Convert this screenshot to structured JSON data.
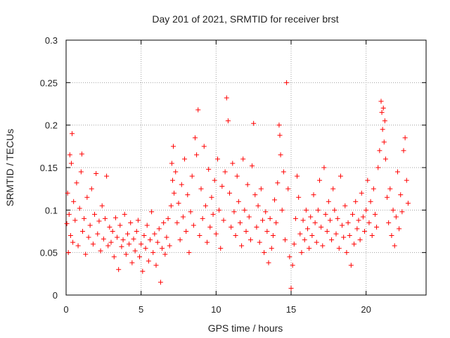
{
  "chart_data": {
    "type": "scatter",
    "title": "Day 201 of 2021, SRMTID for receiver brst",
    "xlabel": "GPS time / hours",
    "ylabel": "SRMTID / TECUs",
    "xlim": [
      0,
      24
    ],
    "ylim": [
      0,
      0.3
    ],
    "xticks": [
      0,
      5,
      10,
      15,
      20
    ],
    "xtick_labels": [
      "0",
      "5",
      "10",
      "15",
      "20"
    ],
    "yticks": [
      0,
      0.05,
      0.1,
      0.15,
      0.2,
      0.25,
      0.3
    ],
    "ytick_labels": [
      "0",
      "0.05",
      "0.1",
      "0.15",
      "0.2",
      "0.25",
      "0.3"
    ],
    "grid": true,
    "marker": "plus",
    "color": "#ff0000",
    "series": [
      {
        "name": "SRMTID",
        "points": [
          [
            0.05,
            0.084
          ],
          [
            0.1,
            0.12
          ],
          [
            0.15,
            0.05
          ],
          [
            0.2,
            0.095
          ],
          [
            0.25,
            0.165
          ],
          [
            0.3,
            0.07
          ],
          [
            0.35,
            0.155
          ],
          [
            0.4,
            0.19
          ],
          [
            0.45,
            0.062
          ],
          [
            0.5,
            0.11
          ],
          [
            0.6,
            0.088
          ],
          [
            0.7,
            0.132
          ],
          [
            0.8,
            0.058
          ],
          [
            0.9,
            0.102
          ],
          [
            1.0,
            0.145
          ],
          [
            1.05,
            0.166
          ],
          [
            1.1,
            0.075
          ],
          [
            1.2,
            0.09
          ],
          [
            1.3,
            0.048
          ],
          [
            1.4,
            0.115
          ],
          [
            1.5,
            0.068
          ],
          [
            1.6,
            0.082
          ],
          [
            1.7,
            0.125
          ],
          [
            1.8,
            0.06
          ],
          [
            1.9,
            0.095
          ],
          [
            2.0,
            0.143
          ],
          [
            2.1,
            0.072
          ],
          [
            2.2,
            0.087
          ],
          [
            2.3,
            0.052
          ],
          [
            2.4,
            0.105
          ],
          [
            2.5,
            0.066
          ],
          [
            2.6,
            0.09
          ],
          [
            2.7,
            0.14
          ],
          [
            2.8,
            0.058
          ],
          [
            2.9,
            0.08
          ],
          [
            3.0,
            0.062
          ],
          [
            3.1,
            0.075
          ],
          [
            3.2,
            0.045
          ],
          [
            3.3,
            0.091
          ],
          [
            3.4,
            0.068
          ],
          [
            3.5,
            0.03
          ],
          [
            3.6,
            0.082
          ],
          [
            3.7,
            0.057
          ],
          [
            3.8,
            0.065
          ],
          [
            3.9,
            0.095
          ],
          [
            4.0,
            0.048
          ],
          [
            4.1,
            0.072
          ],
          [
            4.2,
            0.06
          ],
          [
            4.3,
            0.085
          ],
          [
            4.4,
            0.038
          ],
          [
            4.5,
            0.066
          ],
          [
            4.6,
            0.052
          ],
          [
            4.7,
            0.075
          ],
          [
            4.8,
            0.088
          ],
          [
            4.9,
            0.045
          ],
          [
            5.0,
            0.06
          ],
          [
            5.1,
            0.028
          ],
          [
            5.2,
            0.07
          ],
          [
            5.3,
            0.055
          ],
          [
            5.4,
            0.082
          ],
          [
            5.5,
            0.04
          ],
          [
            5.6,
            0.065
          ],
          [
            5.7,
            0.098
          ],
          [
            5.8,
            0.05
          ],
          [
            5.9,
            0.072
          ],
          [
            6.0,
            0.035
          ],
          [
            6.1,
            0.062
          ],
          [
            6.2,
            0.078
          ],
          [
            6.3,
            0.015
          ],
          [
            6.4,
            0.055
          ],
          [
            6.5,
            0.085
          ],
          [
            6.6,
            0.048
          ],
          [
            6.7,
            0.068
          ],
          [
            6.8,
            0.09
          ],
          [
            6.9,
            0.058
          ],
          [
            7.0,
            0.105
          ],
          [
            7.05,
            0.155
          ],
          [
            7.1,
            0.135
          ],
          [
            7.15,
            0.175
          ],
          [
            7.2,
            0.12
          ],
          [
            7.3,
            0.145
          ],
          [
            7.4,
            0.085
          ],
          [
            7.5,
            0.108
          ],
          [
            7.6,
            0.065
          ],
          [
            7.7,
            0.13
          ],
          [
            7.8,
            0.092
          ],
          [
            7.9,
            0.16
          ],
          [
            8.0,
            0.075
          ],
          [
            8.1,
            0.118
          ],
          [
            8.2,
            0.05
          ],
          [
            8.3,
            0.098
          ],
          [
            8.4,
            0.14
          ],
          [
            8.5,
            0.082
          ],
          [
            8.6,
            0.185
          ],
          [
            8.7,
            0.165
          ],
          [
            8.8,
            0.218
          ],
          [
            8.9,
            0.07
          ],
          [
            9.0,
            0.125
          ],
          [
            9.1,
            0.09
          ],
          [
            9.2,
            0.175
          ],
          [
            9.3,
            0.105
          ],
          [
            9.4,
            0.062
          ],
          [
            9.5,
            0.148
          ],
          [
            9.6,
            0.08
          ],
          [
            9.7,
            0.115
          ],
          [
            9.8,
            0.095
          ],
          [
            9.9,
            0.135
          ],
          [
            10.0,
            0.072
          ],
          [
            10.1,
            0.16
          ],
          [
            10.2,
            0.1
          ],
          [
            10.3,
            0.055
          ],
          [
            10.4,
            0.128
          ],
          [
            10.5,
            0.088
          ],
          [
            10.6,
            0.145
          ],
          [
            10.7,
            0.232
          ],
          [
            10.8,
            0.205
          ],
          [
            10.9,
            0.12
          ],
          [
            11.0,
            0.08
          ],
          [
            11.1,
            0.155
          ],
          [
            11.2,
            0.098
          ],
          [
            11.3,
            0.07
          ],
          [
            11.4,
            0.14
          ],
          [
            11.5,
            0.11
          ],
          [
            11.6,
            0.085
          ],
          [
            11.7,
            0.058
          ],
          [
            11.8,
            0.16
          ],
          [
            11.9,
            0.1
          ],
          [
            12.0,
            0.075
          ],
          [
            12.1,
            0.13
          ],
          [
            12.2,
            0.092
          ],
          [
            12.3,
            0.065
          ],
          [
            12.4,
            0.152
          ],
          [
            12.5,
            0.202
          ],
          [
            12.6,
            0.118
          ],
          [
            12.7,
            0.08
          ],
          [
            12.8,
            0.105
          ],
          [
            12.9,
            0.062
          ],
          [
            13.0,
            0.125
          ],
          [
            13.1,
            0.088
          ],
          [
            13.2,
            0.05
          ],
          [
            13.3,
            0.098
          ],
          [
            13.4,
            0.075
          ],
          [
            13.5,
            0.038
          ],
          [
            13.6,
            0.09
          ],
          [
            13.7,
            0.055
          ],
          [
            13.8,
            0.07
          ],
          [
            13.9,
            0.112
          ],
          [
            14.0,
            0.085
          ],
          [
            14.1,
            0.132
          ],
          [
            14.2,
            0.2
          ],
          [
            14.25,
            0.188
          ],
          [
            14.3,
            0.165
          ],
          [
            14.4,
            0.1
          ],
          [
            14.5,
            0.145
          ],
          [
            14.6,
            0.065
          ],
          [
            14.7,
            0.25
          ],
          [
            14.8,
            0.125
          ],
          [
            14.9,
            0.045
          ],
          [
            15.0,
            0.008
          ],
          [
            15.1,
            0.035
          ],
          [
            15.2,
            0.06
          ],
          [
            15.3,
            0.09
          ],
          [
            15.4,
            0.14
          ],
          [
            15.5,
            0.115
          ],
          [
            15.6,
            0.072
          ],
          [
            15.7,
            0.05
          ],
          [
            15.8,
            0.088
          ],
          [
            15.9,
            0.065
          ],
          [
            16.0,
            0.1
          ],
          [
            16.1,
            0.078
          ],
          [
            16.2,
            0.055
          ],
          [
            16.3,
            0.092
          ],
          [
            16.4,
            0.07
          ],
          [
            16.5,
            0.118
          ],
          [
            16.6,
            0.085
          ],
          [
            16.7,
            0.062
          ],
          [
            16.8,
            0.1
          ],
          [
            16.9,
            0.135
          ],
          [
            17.0,
            0.08
          ],
          [
            17.1,
            0.058
          ],
          [
            17.2,
            0.15
          ],
          [
            17.3,
            0.095
          ],
          [
            17.4,
            0.075
          ],
          [
            17.5,
            0.11
          ],
          [
            17.6,
            0.088
          ],
          [
            17.7,
            0.065
          ],
          [
            17.8,
            0.125
          ],
          [
            17.9,
            0.1
          ],
          [
            18.0,
            0.072
          ],
          [
            18.1,
            0.09
          ],
          [
            18.2,
            0.055
          ],
          [
            18.3,
            0.14
          ],
          [
            18.4,
            0.082
          ],
          [
            18.5,
            0.068
          ],
          [
            18.6,
            0.105
          ],
          [
            18.7,
            0.05
          ],
          [
            18.8,
            0.085
          ],
          [
            18.9,
            0.07
          ],
          [
            19.0,
            0.035
          ],
          [
            19.1,
            0.095
          ],
          [
            19.2,
            0.06
          ],
          [
            19.3,
            0.11
          ],
          [
            19.4,
            0.078
          ],
          [
            19.5,
            0.088
          ],
          [
            19.6,
            0.065
          ],
          [
            19.7,
            0.12
          ],
          [
            19.8,
            0.092
          ],
          [
            19.9,
            0.075
          ],
          [
            20.0,
            0.1
          ],
          [
            20.1,
            0.135
          ],
          [
            20.2,
            0.085
          ],
          [
            20.3,
            0.11
          ],
          [
            20.4,
            0.07
          ],
          [
            20.5,
            0.125
          ],
          [
            20.6,
            0.095
          ],
          [
            20.7,
            0.08
          ],
          [
            20.8,
            0.15
          ],
          [
            20.9,
            0.17
          ],
          [
            21.0,
            0.228
          ],
          [
            21.05,
            0.215
          ],
          [
            21.1,
            0.195
          ],
          [
            21.15,
            0.22
          ],
          [
            21.2,
            0.18
          ],
          [
            21.25,
            0.205
          ],
          [
            21.3,
            0.16
          ],
          [
            21.4,
            0.115
          ],
          [
            21.5,
            0.085
          ],
          [
            21.6,
            0.125
          ],
          [
            21.7,
            0.07
          ],
          [
            21.8,
            0.1
          ],
          [
            21.9,
            0.058
          ],
          [
            22.0,
            0.092
          ],
          [
            22.1,
            0.145
          ],
          [
            22.2,
            0.078
          ],
          [
            22.3,
            0.118
          ],
          [
            22.4,
            0.098
          ],
          [
            22.5,
            0.17
          ],
          [
            22.6,
            0.185
          ],
          [
            22.7,
            0.135
          ],
          [
            22.8,
            0.108
          ]
        ]
      }
    ]
  }
}
